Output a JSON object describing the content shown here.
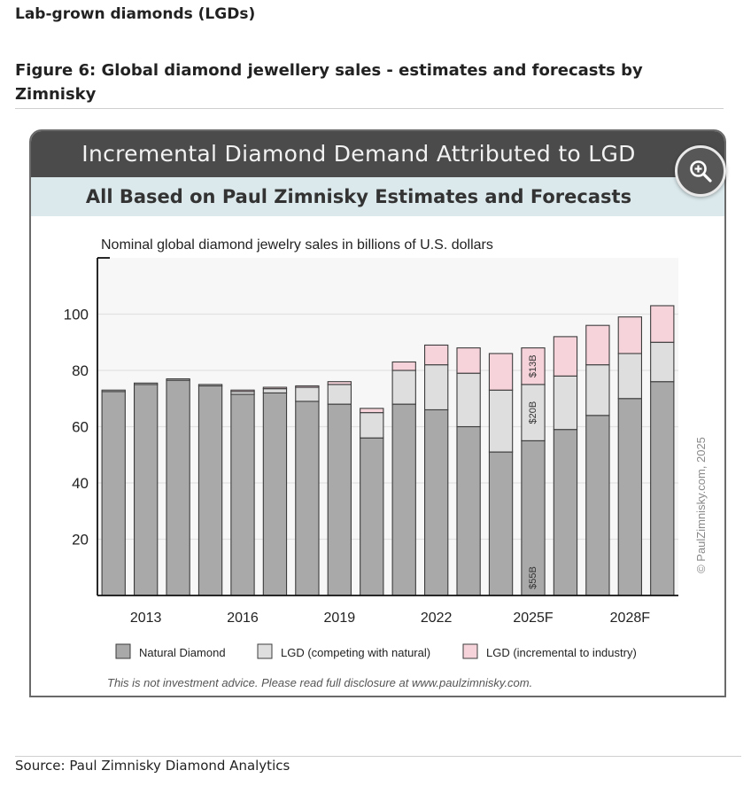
{
  "header": {
    "section_title": "Lab-grown diamonds (LGDs)",
    "figure_title": "Figure 6: Global diamond jewellery sales - estimates and forecasts by Zimnisky"
  },
  "graphic": {
    "banner": "Incremental Diamond Demand Attributed to LGD",
    "subbanner": "All Based on Paul Zimnisky Estimates and Forecasts",
    "copyright": "© PaulZimnisky.com, 2025",
    "disclaimer": "This is not investment advice. Please read full disclosure at www.paulzimnisky.com.",
    "zoom_icon": "zoom-in-icon"
  },
  "colors": {
    "natural": "#a9a9a9",
    "lgd_competing": "#dedede",
    "lgd_incremental": "#f6d3da",
    "bar_stroke": "#3c3c3c",
    "banner": "#4b4b4b",
    "subbanner": "#dbe9ec"
  },
  "chart_data": {
    "type": "bar",
    "stacked": true,
    "title": "Nominal global diamond jewelry sales in billions of U.S. dollars",
    "xlabel": "",
    "ylabel": "",
    "ylim": [
      0,
      120
    ],
    "yticks": [
      20,
      40,
      60,
      80,
      100
    ],
    "grid": true,
    "legend_position": "bottom",
    "categories": [
      "2012",
      "2013",
      "2014",
      "2015",
      "2016",
      "2017",
      "2018",
      "2019",
      "2020",
      "2021",
      "2022",
      "2023",
      "2024",
      "2025F",
      "2026F",
      "2027F",
      "2028F",
      "2029F"
    ],
    "x_tick_labels": [
      {
        "category": "2013",
        "label": "2013"
      },
      {
        "category": "2016",
        "label": "2016"
      },
      {
        "category": "2019",
        "label": "2019"
      },
      {
        "category": "2022",
        "label": "2022"
      },
      {
        "category": "2025F",
        "label": "2025F"
      },
      {
        "category": "2028F",
        "label": "2028F"
      }
    ],
    "series": [
      {
        "name": "Natural Diamond",
        "key": "natural",
        "values": [
          72.5,
          75,
          76.5,
          74.5,
          71.5,
          72,
          69,
          68,
          56,
          68,
          66,
          60,
          51,
          55,
          59,
          64,
          70,
          76
        ]
      },
      {
        "name": "LGD (competing with natural)",
        "key": "lgd_competing",
        "values": [
          0.5,
          0.5,
          0.5,
          0.5,
          1,
          1.5,
          5,
          7,
          9,
          12,
          16,
          19,
          22,
          20,
          19,
          18,
          16,
          14
        ]
      },
      {
        "name": "LGD (incremental to industry)",
        "key": "lgd_incremental",
        "values": [
          0,
          0,
          0,
          0,
          0.5,
          0.5,
          0.5,
          1,
          1.5,
          3,
          7,
          9,
          13,
          13,
          14,
          14,
          13,
          13
        ]
      }
    ],
    "annotations": [
      {
        "category": "2025F",
        "series": "natural",
        "text": "$55B"
      },
      {
        "category": "2025F",
        "series": "lgd_competing",
        "text": "$20B"
      },
      {
        "category": "2025F",
        "series": "lgd_incremental",
        "text": "$13B"
      }
    ]
  },
  "footer": {
    "source": "Source: Paul Zimnisky Diamond Analytics"
  }
}
